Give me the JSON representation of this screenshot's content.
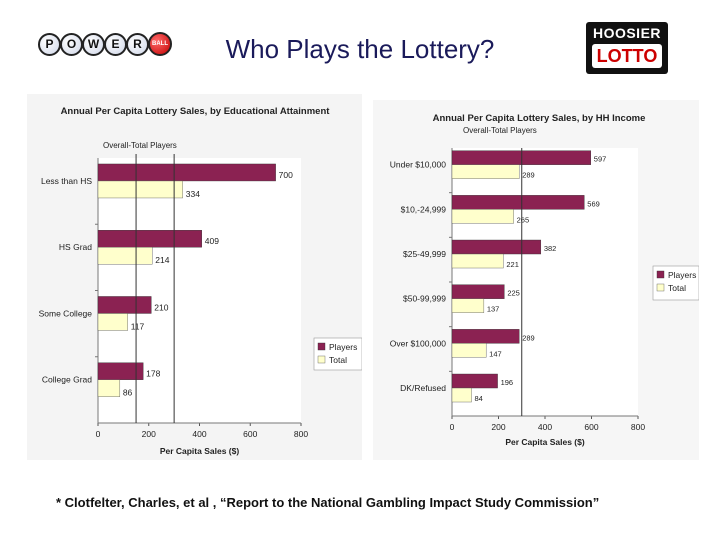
{
  "slide": {
    "title": "Who Plays the Lottery?",
    "citation": "* Clotfelter, Charles, et al , “Report to the National Gambling Impact Study Commission”",
    "powerball_letters": [
      "P",
      "O",
      "W",
      "E",
      "R"
    ],
    "powerball_ball_text": "BALL",
    "hoosier_text_top": "HOOSIER",
    "hoosier_text_bottom": "LOTTO"
  },
  "colors": {
    "players": "#8b2252",
    "total": "#ffffcc",
    "plot_bg": "#ffffff",
    "panel_bg": "#f4f4f4",
    "title": "#1a1a5a"
  },
  "chart_data": [
    {
      "type": "bar",
      "orientation": "horizontal",
      "title": "Annual Per Capita Lottery Sales, by Educational Attainment",
      "subtitle": "Overall-Total Players",
      "categories": [
        "Less than HS",
        "HS Grad",
        "Some College",
        "College Grad"
      ],
      "series": [
        {
          "name": "Players",
          "values": [
            700,
            409,
            210,
            178
          ]
        },
        {
          "name": "Total",
          "values": [
            334,
            214,
            117,
            86
          ]
        }
      ],
      "value_labels": {
        "Players": [
          "700",
          "409",
          "210",
          "178"
        ],
        "Total": [
          "334",
          "214",
          "117",
          "86"
        ]
      },
      "reference_lines": [
        150,
        300
      ],
      "xlim": [
        0,
        800
      ],
      "xticks": [
        0,
        200,
        400,
        600,
        800
      ],
      "xlabel": "Per Capita Sales ($)",
      "legend": "bottom-right"
    },
    {
      "type": "bar",
      "orientation": "horizontal",
      "title": "Annual Per Capita Lottery Sales, by HH Income",
      "subtitle": "Overall-Total Players",
      "categories": [
        "Under $10,000",
        "$10,-24,999",
        "$25-49,999",
        "$50-99,999",
        "Over $100,000",
        "DK/Refused"
      ],
      "series": [
        {
          "name": "Players",
          "values": [
            597,
            569,
            382,
            225,
            289,
            196
          ]
        },
        {
          "name": "Total",
          "values": [
            289,
            265,
            221,
            137,
            147,
            84
          ]
        }
      ],
      "value_labels": {
        "Players": [
          "597",
          "569",
          "382",
          "225",
          "289",
          "196"
        ],
        "Total": [
          "289",
          "265",
          "221",
          "137",
          "147",
          "84"
        ]
      },
      "reference_lines": [
        300
      ],
      "xlim": [
        0,
        800
      ],
      "xticks": [
        0,
        200,
        400,
        600,
        800
      ],
      "xlabel": "Per Capita Sales ($)",
      "legend": "right"
    }
  ]
}
